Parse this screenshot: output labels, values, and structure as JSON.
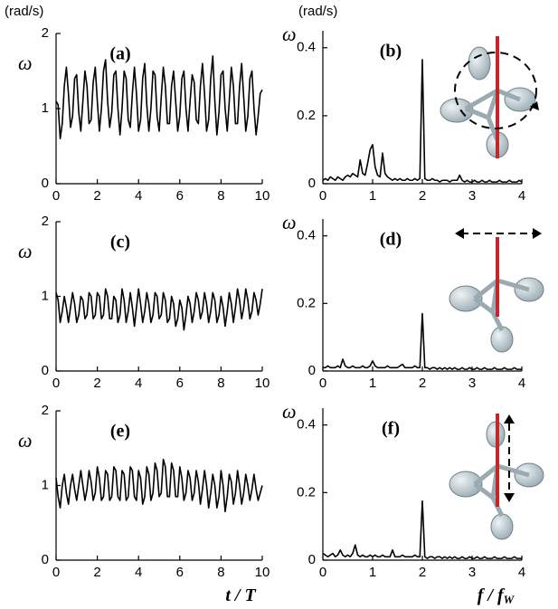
{
  "chart_data": [
    {
      "type": "line",
      "panel_label": "(a)",
      "ylabel": "ω",
      "yunit": "(rad/s)",
      "color": "#000000",
      "x": [
        0,
        0.1,
        0.2,
        0.3,
        0.4,
        0.5,
        0.6,
        0.7,
        0.8,
        0.9,
        1,
        1.1,
        1.2,
        1.3,
        1.4,
        1.5,
        1.6,
        1.7,
        1.8,
        1.9,
        2,
        2.1,
        2.2,
        2.3,
        2.4,
        2.5,
        2.6,
        2.7,
        2.8,
        2.9,
        3,
        3.1,
        3.2,
        3.3,
        3.4,
        3.5,
        3.6,
        3.7,
        3.8,
        3.9,
        4,
        4.1,
        4.2,
        4.3,
        4.4,
        4.5,
        4.6,
        4.7,
        4.8,
        4.9,
        5,
        5.1,
        5.2,
        5.3,
        5.4,
        5.5,
        5.6,
        5.7,
        5.8,
        5.9,
        6,
        6.1,
        6.2,
        6.3,
        6.4,
        6.5,
        6.6,
        6.7,
        6.8,
        6.9,
        7,
        7.1,
        7.2,
        7.3,
        7.4,
        7.5,
        7.6,
        7.7,
        7.8,
        7.9,
        8,
        8.1,
        8.2,
        8.3,
        8.4,
        8.5,
        8.6,
        8.7,
        8.8,
        8.9,
        9,
        9.1,
        9.2,
        9.3,
        9.4,
        9.5,
        9.6,
        9.7,
        9.8,
        9.9,
        10
      ],
      "values": [
        1.1,
        1.05,
        0.6,
        0.8,
        1.3,
        1.55,
        1.2,
        0.75,
        0.9,
        1.4,
        1.45,
        0.95,
        0.7,
        1.1,
        1.5,
        1.3,
        0.8,
        0.85,
        1.35,
        1.55,
        1.1,
        0.7,
        1.0,
        1.5,
        1.65,
        1.1,
        0.75,
        0.95,
        1.45,
        1.5,
        1.0,
        0.65,
        1.0,
        1.5,
        1.4,
        0.85,
        0.75,
        1.2,
        1.55,
        1.2,
        0.7,
        0.85,
        1.4,
        1.6,
        1.05,
        0.7,
        1.0,
        1.5,
        1.45,
        0.9,
        0.7,
        1.15,
        1.55,
        1.3,
        0.8,
        0.8,
        1.3,
        1.5,
        1.1,
        0.7,
        0.9,
        1.4,
        1.5,
        1.0,
        0.7,
        1.1,
        1.45,
        1.35,
        0.85,
        0.8,
        1.3,
        1.6,
        1.2,
        0.7,
        0.85,
        1.4,
        1.7,
        1.1,
        0.65,
        0.95,
        1.45,
        1.5,
        1.0,
        0.7,
        1.1,
        1.55,
        1.3,
        0.8,
        0.8,
        1.3,
        1.6,
        1.15,
        0.7,
        0.9,
        1.4,
        1.5,
        1.0,
        0.65,
        0.9,
        1.2,
        1.25
      ],
      "xlim": [
        0,
        10
      ],
      "xticks": [
        0,
        2,
        4,
        6,
        8,
        10
      ],
      "ylim": [
        0,
        2
      ],
      "yticks": [
        0,
        1,
        2
      ]
    },
    {
      "type": "line",
      "panel_label": "(b)",
      "ylabel": "ω",
      "yunit": "(rad/s)",
      "color": "#000000",
      "x": [
        0,
        0.05,
        0.1,
        0.15,
        0.2,
        0.25,
        0.3,
        0.35,
        0.4,
        0.45,
        0.5,
        0.55,
        0.6,
        0.65,
        0.7,
        0.75,
        0.8,
        0.85,
        0.9,
        0.95,
        1,
        1.05,
        1.1,
        1.15,
        1.2,
        1.25,
        1.3,
        1.35,
        1.4,
        1.45,
        1.5,
        1.55,
        1.6,
        1.65,
        1.7,
        1.75,
        1.8,
        1.85,
        1.9,
        1.95,
        2,
        2.05,
        2.1,
        2.15,
        2.2,
        2.25,
        2.3,
        2.35,
        2.4,
        2.45,
        2.5,
        2.55,
        2.6,
        2.65,
        2.7,
        2.75,
        2.8,
        2.85,
        2.9,
        2.95,
        3,
        3.05,
        3.1,
        3.15,
        3.2,
        3.25,
        3.3,
        3.35,
        3.4,
        3.45,
        3.5,
        3.55,
        3.6,
        3.65,
        3.7,
        3.75,
        3.8,
        3.85,
        3.9,
        3.95,
        4
      ],
      "values": [
        0.01,
        0.015,
        0.01,
        0.02,
        0.015,
        0.01,
        0.02,
        0.015,
        0.01,
        0.02,
        0.025,
        0.02,
        0.03,
        0.025,
        0.02,
        0.07,
        0.03,
        0.025,
        0.06,
        0.1,
        0.115,
        0.05,
        0.025,
        0.02,
        0.09,
        0.03,
        0.02,
        0.015,
        0.01,
        0.015,
        0.01,
        0.015,
        0.01,
        0.01,
        0.015,
        0.01,
        0.01,
        0.015,
        0.01,
        0.015,
        0.365,
        0.015,
        0.01,
        0.01,
        0.015,
        0.01,
        0.01,
        0.005,
        0.01,
        0.01,
        0.01,
        0.005,
        0.01,
        0.01,
        0.01,
        0.025,
        0.01,
        0.005,
        0.01,
        0.005,
        0.005,
        0.01,
        0.005,
        0.005,
        0.01,
        0.005,
        0.005,
        0.01,
        0.005,
        0.005,
        0.005,
        0.01,
        0.005,
        0.005,
        0.005,
        0.01,
        0.005,
        0.005,
        0.005,
        0.01,
        0.005
      ],
      "xlim": [
        0,
        4
      ],
      "xticks": [
        0,
        1,
        2,
        3,
        4
      ],
      "ylim": [
        0,
        0.45
      ],
      "yticks": [
        0,
        0.2,
        0.4
      ]
    },
    {
      "type": "line",
      "panel_label": "(c)",
      "ylabel": "ω",
      "color": "#000000",
      "x": [
        0,
        0.1,
        0.2,
        0.3,
        0.4,
        0.5,
        0.6,
        0.7,
        0.8,
        0.9,
        1,
        1.1,
        1.2,
        1.3,
        1.4,
        1.5,
        1.6,
        1.7,
        1.8,
        1.9,
        2,
        2.1,
        2.2,
        2.3,
        2.4,
        2.5,
        2.6,
        2.7,
        2.8,
        2.9,
        3,
        3.1,
        3.2,
        3.3,
        3.4,
        3.5,
        3.6,
        3.7,
        3.8,
        3.9,
        4,
        4.1,
        4.2,
        4.3,
        4.4,
        4.5,
        4.6,
        4.7,
        4.8,
        4.9,
        5,
        5.1,
        5.2,
        5.3,
        5.4,
        5.5,
        5.6,
        5.7,
        5.8,
        5.9,
        6,
        6.1,
        6.2,
        6.3,
        6.4,
        6.5,
        6.6,
        6.7,
        6.8,
        6.9,
        7,
        7.1,
        7.2,
        7.3,
        7.4,
        7.5,
        7.6,
        7.7,
        7.8,
        7.9,
        8,
        8.1,
        8.2,
        8.3,
        8.4,
        8.5,
        8.6,
        8.7,
        8.8,
        8.9,
        9,
        9.1,
        9.2,
        9.3,
        9.4,
        9.5,
        9.6,
        9.7,
        9.8,
        9.9,
        10
      ],
      "values": [
        1.05,
        0.95,
        0.65,
        0.8,
        1.0,
        0.85,
        0.65,
        0.85,
        1.05,
        0.9,
        0.65,
        0.75,
        1.0,
        0.95,
        0.7,
        0.75,
        1.05,
        1.0,
        0.7,
        0.75,
        1.05,
        1.0,
        0.7,
        0.75,
        1.1,
        1.0,
        0.7,
        0.7,
        1.0,
        0.95,
        0.65,
        0.75,
        1.1,
        0.95,
        0.65,
        0.8,
        1.05,
        0.85,
        0.6,
        0.85,
        1.1,
        0.9,
        0.65,
        0.8,
        1.05,
        0.9,
        0.65,
        0.75,
        1.05,
        1.0,
        0.7,
        0.75,
        1.05,
        0.95,
        0.65,
        0.7,
        1.0,
        0.9,
        0.6,
        0.7,
        0.95,
        0.85,
        0.55,
        0.75,
        1.0,
        0.9,
        0.65,
        0.8,
        1.05,
        0.95,
        0.7,
        0.8,
        1.05,
        0.9,
        0.65,
        0.8,
        1.05,
        0.95,
        0.65,
        0.75,
        1.0,
        0.85,
        0.6,
        0.8,
        1.05,
        0.9,
        0.65,
        0.85,
        1.1,
        0.95,
        0.7,
        0.85,
        1.1,
        0.95,
        0.7,
        0.8,
        1.05,
        0.95,
        0.75,
        0.9,
        1.1
      ],
      "xlim": [
        0,
        10
      ],
      "xticks": [
        0,
        2,
        4,
        6,
        8,
        10
      ],
      "ylim": [
        0,
        2
      ],
      "yticks": [
        0,
        1,
        2
      ]
    },
    {
      "type": "line",
      "panel_label": "(d)",
      "ylabel": "ω",
      "color": "#000000",
      "x": [
        0,
        0.05,
        0.1,
        0.15,
        0.2,
        0.25,
        0.3,
        0.35,
        0.4,
        0.45,
        0.5,
        0.55,
        0.6,
        0.65,
        0.7,
        0.75,
        0.8,
        0.85,
        0.9,
        0.95,
        1,
        1.05,
        1.1,
        1.15,
        1.2,
        1.25,
        1.3,
        1.35,
        1.4,
        1.45,
        1.5,
        1.55,
        1.6,
        1.65,
        1.7,
        1.75,
        1.8,
        1.85,
        1.9,
        1.95,
        2,
        2.05,
        2.1,
        2.15,
        2.2,
        2.25,
        2.3,
        2.35,
        2.4,
        2.45,
        2.5,
        2.55,
        2.6,
        2.65,
        2.7,
        2.75,
        2.8,
        2.85,
        2.9,
        2.95,
        3,
        3.05,
        3.1,
        3.15,
        3.2,
        3.25,
        3.3,
        3.35,
        3.4,
        3.45,
        3.5,
        3.55,
        3.6,
        3.65,
        3.7,
        3.75,
        3.8,
        3.85,
        3.9,
        3.95,
        4
      ],
      "values": [
        0.01,
        0.01,
        0.015,
        0.01,
        0.01,
        0.01,
        0.015,
        0.01,
        0.035,
        0.015,
        0.01,
        0.01,
        0.015,
        0.01,
        0.01,
        0.01,
        0.015,
        0.01,
        0.01,
        0.015,
        0.03,
        0.015,
        0.01,
        0.01,
        0.01,
        0.01,
        0.015,
        0.01,
        0.01,
        0.01,
        0.01,
        0.015,
        0.02,
        0.01,
        0.01,
        0.01,
        0.01,
        0.015,
        0.01,
        0.01,
        0.17,
        0.01,
        0.01,
        0.005,
        0.01,
        0.01,
        0.005,
        0.01,
        0.005,
        0.01,
        0.005,
        0.01,
        0.005,
        0.01,
        0.005,
        0.005,
        0.01,
        0.005,
        0.005,
        0.01,
        0.005,
        0.005,
        0.01,
        0.005,
        0.005,
        0.01,
        0.005,
        0.005,
        0.005,
        0.01,
        0.005,
        0.005,
        0.005,
        0.01,
        0.005,
        0.005,
        0.005,
        0.01,
        0.005,
        0.005,
        0.005
      ],
      "xlim": [
        0,
        4
      ],
      "xticks": [
        0,
        1,
        2,
        3,
        4
      ],
      "ylim": [
        0,
        0.45
      ],
      "yticks": [
        0,
        0.2,
        0.4
      ]
    },
    {
      "type": "line",
      "panel_label": "(e)",
      "ylabel": "ω",
      "xlabel": "t / T",
      "color": "#000000",
      "x": [
        0,
        0.1,
        0.2,
        0.3,
        0.4,
        0.5,
        0.6,
        0.7,
        0.8,
        0.9,
        1,
        1.1,
        1.2,
        1.3,
        1.4,
        1.5,
        1.6,
        1.7,
        1.8,
        1.9,
        2,
        2.1,
        2.2,
        2.3,
        2.4,
        2.5,
        2.6,
        2.7,
        2.8,
        2.9,
        3,
        3.1,
        3.2,
        3.3,
        3.4,
        3.5,
        3.6,
        3.7,
        3.8,
        3.9,
        4,
        4.1,
        4.2,
        4.3,
        4.4,
        4.5,
        4.6,
        4.7,
        4.8,
        4.9,
        5,
        5.1,
        5.2,
        5.3,
        5.4,
        5.5,
        5.6,
        5.7,
        5.8,
        5.9,
        6,
        6.1,
        6.2,
        6.3,
        6.4,
        6.5,
        6.6,
        6.7,
        6.8,
        6.9,
        7,
        7.1,
        7.2,
        7.3,
        7.4,
        7.5,
        7.6,
        7.7,
        7.8,
        7.9,
        8,
        8.1,
        8.2,
        8.3,
        8.4,
        8.5,
        8.6,
        8.7,
        8.8,
        8.9,
        9,
        9.1,
        9.2,
        9.3,
        9.4,
        9.5,
        9.6,
        9.7,
        9.8,
        9.9,
        10
      ],
      "values": [
        1.1,
        0.85,
        0.7,
        1.0,
        1.15,
        0.9,
        0.75,
        1.0,
        1.15,
        0.95,
        0.8,
        1.0,
        1.2,
        1.0,
        0.8,
        0.95,
        1.2,
        1.05,
        0.8,
        0.9,
        1.25,
        1.1,
        0.8,
        0.85,
        1.2,
        1.15,
        0.8,
        0.85,
        1.25,
        1.2,
        0.85,
        0.8,
        1.2,
        1.15,
        0.8,
        0.85,
        1.25,
        1.2,
        0.85,
        0.8,
        1.2,
        1.1,
        0.75,
        0.85,
        1.25,
        1.15,
        0.8,
        0.9,
        1.3,
        1.2,
        0.85,
        0.9,
        1.35,
        1.25,
        0.85,
        0.85,
        1.3,
        1.2,
        0.85,
        0.85,
        1.25,
        1.1,
        0.8,
        0.9,
        1.2,
        1.1,
        0.8,
        0.9,
        1.2,
        1.05,
        0.75,
        0.95,
        1.2,
        1.0,
        0.7,
        0.9,
        1.15,
        1.0,
        0.7,
        0.85,
        1.2,
        1.0,
        0.65,
        0.85,
        1.15,
        1.05,
        0.75,
        0.9,
        1.2,
        1.0,
        0.75,
        0.9,
        1.15,
        1.0,
        0.8,
        0.95,
        1.15,
        0.95,
        0.8,
        0.9,
        1.0
      ],
      "xlim": [
        0,
        10
      ],
      "xticks": [
        0,
        2,
        4,
        6,
        8,
        10
      ],
      "ylim": [
        0,
        2
      ],
      "yticks": [
        0,
        1,
        2
      ]
    },
    {
      "type": "line",
      "panel_label": "(f)",
      "ylabel": "ω",
      "xlabel": "f / f",
      "xlabel_subscript": "W",
      "color": "#000000",
      "x": [
        0,
        0.05,
        0.1,
        0.15,
        0.2,
        0.25,
        0.3,
        0.35,
        0.4,
        0.45,
        0.5,
        0.55,
        0.6,
        0.65,
        0.7,
        0.75,
        0.8,
        0.85,
        0.9,
        0.95,
        1,
        1.05,
        1.1,
        1.15,
        1.2,
        1.25,
        1.3,
        1.35,
        1.4,
        1.45,
        1.5,
        1.55,
        1.6,
        1.65,
        1.7,
        1.75,
        1.8,
        1.85,
        1.9,
        1.95,
        2,
        2.05,
        2.1,
        2.15,
        2.2,
        2.25,
        2.3,
        2.35,
        2.4,
        2.45,
        2.5,
        2.55,
        2.6,
        2.65,
        2.7,
        2.75,
        2.8,
        2.85,
        2.9,
        2.95,
        3,
        3.05,
        3.1,
        3.15,
        3.2,
        3.25,
        3.3,
        3.35,
        3.4,
        3.45,
        3.5,
        3.55,
        3.6,
        3.65,
        3.7,
        3.75,
        3.8,
        3.85,
        3.9,
        3.95,
        4
      ],
      "values": [
        0.02,
        0.015,
        0.01,
        0.015,
        0.02,
        0.01,
        0.015,
        0.03,
        0.015,
        0.01,
        0.015,
        0.01,
        0.02,
        0.045,
        0.015,
        0.01,
        0.015,
        0.01,
        0.01,
        0.015,
        0.01,
        0.015,
        0.01,
        0.01,
        0.015,
        0.01,
        0.01,
        0.01,
        0.03,
        0.01,
        0.01,
        0.01,
        0.015,
        0.01,
        0.01,
        0.01,
        0.01,
        0.015,
        0.01,
        0.01,
        0.175,
        0.01,
        0.005,
        0.01,
        0.01,
        0.005,
        0.01,
        0.01,
        0.005,
        0.01,
        0.005,
        0.01,
        0.005,
        0.01,
        0.005,
        0.005,
        0.01,
        0.005,
        0.005,
        0.01,
        0.005,
        0.005,
        0.01,
        0.005,
        0.005,
        0.01,
        0.005,
        0.005,
        0.005,
        0.01,
        0.005,
        0.005,
        0.005,
        0.01,
        0.005,
        0.005,
        0.005,
        0.01,
        0.005,
        0.005,
        0.005
      ],
      "xlim": [
        0,
        4
      ],
      "xticks": [
        0,
        1,
        2,
        3,
        4
      ],
      "ylim": [
        0,
        0.45
      ],
      "yticks": [
        0,
        0.2,
        0.4
      ]
    }
  ]
}
